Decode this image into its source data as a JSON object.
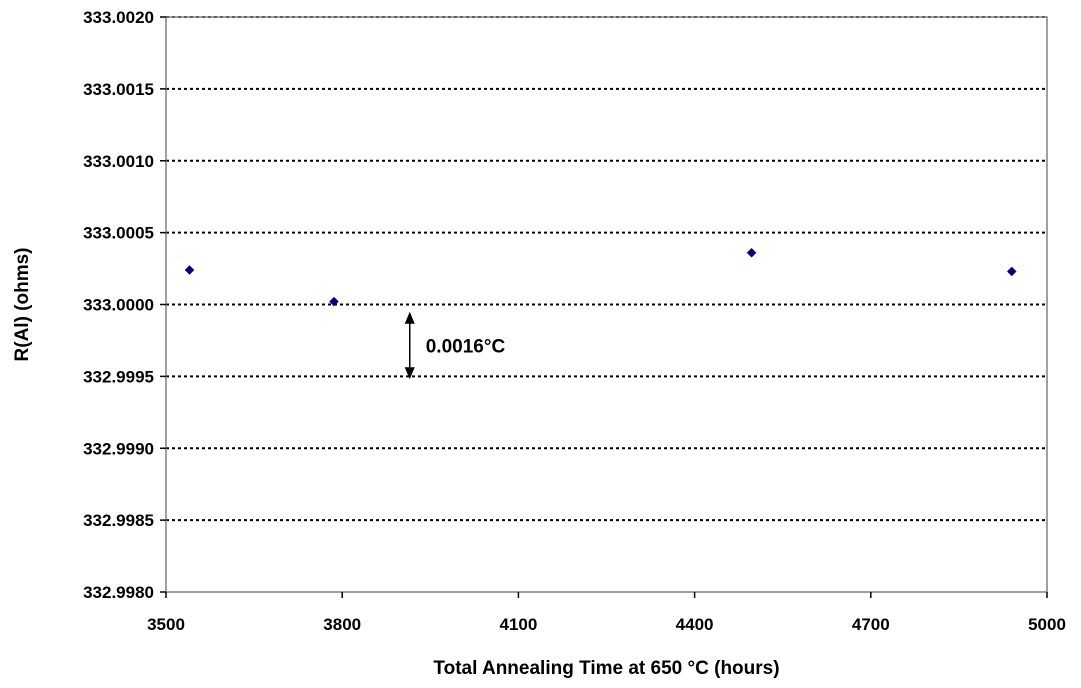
{
  "chart_data": {
    "type": "scatter",
    "title": "",
    "xlabel": "Total Annealing Time at 650 °C (hours)",
    "ylabel": "R(Al) (ohms)",
    "xlim": [
      3500,
      5000
    ],
    "ylim": [
      332.998,
      333.002
    ],
    "x_ticks": [
      3500,
      3800,
      4100,
      4400,
      4700,
      5000
    ],
    "x_tick_labels": [
      "3500",
      "3800",
      "4100",
      "4400",
      "4700",
      "5000"
    ],
    "y_ticks": [
      332.998,
      332.9985,
      332.999,
      332.9995,
      333.0,
      333.0005,
      333.001,
      333.0015,
      333.002
    ],
    "y_tick_labels": [
      "332.9980",
      "332.9985",
      "332.9990",
      "332.9995",
      "333.0000",
      "333.0005",
      "333.0010",
      "333.0015",
      "333.0020"
    ],
    "grid": "horizontal dashed",
    "legend": "none",
    "series": [
      {
        "color": "#000080",
        "marker": "diamond",
        "points": [
          {
            "x": 3540,
            "y": 333.00024
          },
          {
            "x": 3786,
            "y": 333.00002
          },
          {
            "x": 4497,
            "y": 333.00036
          },
          {
            "x": 4940,
            "y": 333.00023
          }
        ]
      }
    ],
    "annotations": [
      {
        "text": "0.0016°C",
        "type": "double-arrow",
        "x": 3915,
        "y_from": 332.99995,
        "y_to": 332.99948
      }
    ]
  }
}
